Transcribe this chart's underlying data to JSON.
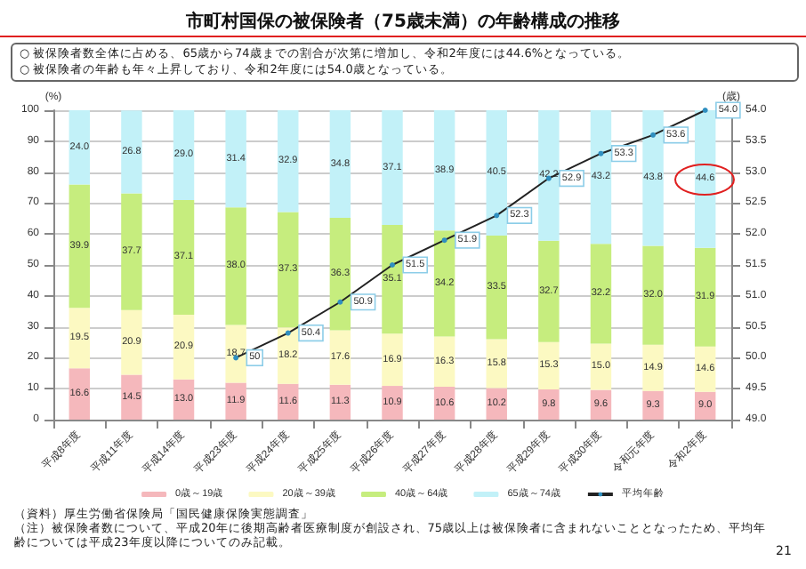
{
  "chart_data": {
    "type": "bar",
    "title": "市町村国保の被保険者（75歳未満）の年齢構成の推移",
    "ylabel": "(%)",
    "y2label": "(歳)",
    "categories": [
      "平成8年度",
      "平成11年度",
      "平成14年度",
      "平成23年度",
      "平成24年度",
      "平成25年度",
      "平成26年度",
      "平成27年度",
      "平成28年度",
      "平成29年度",
      "平成30年度",
      "令和元年度",
      "令和2年度"
    ],
    "stacked": true,
    "grid": "y",
    "legend": "bottom",
    "ylim": [
      0,
      100
    ],
    "yticks": [
      0,
      10,
      20,
      30,
      40,
      50,
      60,
      70,
      80,
      90,
      100
    ],
    "y2lim": [
      49,
      54
    ],
    "y2ticks": [
      {
        "value": 49,
        "label": "49.0"
      },
      49.5,
      {
        "value": 50,
        "label": "50.0"
      },
      50.5,
      {
        "value": 51,
        "label": "51.0"
      },
      51.5,
      {
        "value": 52,
        "label": "52.0"
      },
      52.5,
      {
        "value": 53,
        "label": "53.0"
      },
      53.5,
      {
        "value": 54,
        "label": "54.0"
      }
    ],
    "series": [
      {
        "name": "0歳～19歳",
        "color": "#f5b8bc",
        "values": [
          16.6,
          14.5,
          13.0,
          11.9,
          11.6,
          11.3,
          10.9,
          10.6,
          10.2,
          9.8,
          9.6,
          9.3,
          9.0
        ],
        "value_labels": [
          "16.6",
          "14.5",
          "13.0",
          "11.9",
          "11.6",
          "11.3",
          "10.9",
          "10.6",
          "10.2",
          "9.8",
          "9.6",
          "9.3",
          "9.0"
        ]
      },
      {
        "name": "20歳～39歳",
        "color": "#fcf9c2",
        "values": [
          19.5,
          20.9,
          20.9,
          18.7,
          18.2,
          17.6,
          16.9,
          16.3,
          15.8,
          15.3,
          15.0,
          14.9,
          14.6
        ],
        "value_labels": [
          "19.5",
          "20.9",
          "20.9",
          "18.7",
          "18.2",
          "17.6",
          "16.9",
          "16.3",
          "15.8",
          "15.3",
          "15.0",
          "14.9",
          "14.6"
        ]
      },
      {
        "name": "40歳～64歳",
        "color": "#c6ed7e",
        "values": [
          39.9,
          37.7,
          37.1,
          38.0,
          37.3,
          36.3,
          35.1,
          34.2,
          33.5,
          32.7,
          32.2,
          32.0,
          31.9
        ],
        "value_labels": [
          "39.9",
          "37.7",
          "37.1",
          "38.0",
          "37.3",
          "36.3",
          "35.1",
          "34.2",
          "33.5",
          "32.7",
          "32.2",
          "32.0",
          "31.9"
        ]
      },
      {
        "name": "65歳～74歳",
        "color": "#c2f1f8",
        "values": [
          24.0,
          26.8,
          29.0,
          31.4,
          32.9,
          34.8,
          37.1,
          38.9,
          40.5,
          42.2,
          43.2,
          43.8,
          44.6
        ],
        "value_labels": [
          "24.0",
          "26.8",
          "29.0",
          "31.4",
          "32.9",
          "34.8",
          "37.1",
          "38.9",
          "40.5",
          "42.2",
          "43.2",
          "43.8",
          "44.6"
        ]
      },
      {
        "name": "平均年齢",
        "type": "line",
        "axis": "y2",
        "color": "#222222",
        "marker": "circle",
        "values": [
          null,
          null,
          null,
          50.0,
          50.4,
          50.9,
          51.5,
          51.9,
          52.3,
          52.9,
          53.3,
          53.6,
          54.0
        ],
        "value_labels": [
          null,
          null,
          null,
          "50",
          "50.4",
          "50.9",
          "51.5",
          "51.9",
          "52.3",
          "52.9",
          "53.3",
          "53.6",
          "54.0"
        ]
      }
    ],
    "annotations": [
      "○ 被保険者数全体に占める、65歳から74歳までの割合が次第に増加し、令和2年度には44.6%となっている。",
      "○ 被保険者の年齢も年々上昇しており、令和2年度には54.0歳となっている。",
      "（資料）厚生労働省保険局「国民健康保険実態調査」",
      "（注）被保険者数について、平成20年に後期高齢者医療制度が創設され、75歳以上は被保険者に含まれないこととなったため、平均年齢については平成23年度以降についてのみ記載。",
      "21"
    ]
  }
}
